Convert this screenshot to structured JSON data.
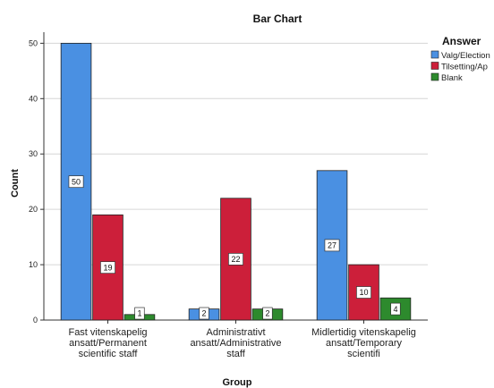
{
  "chart_data": {
    "type": "bar",
    "title": "Bar Chart",
    "xlabel": "Group",
    "ylabel": "Count",
    "ylim": [
      0,
      52
    ],
    "yticks": [
      0,
      10,
      20,
      30,
      40,
      50
    ],
    "grid": true,
    "legend_position": "right",
    "legend_title": "Answer",
    "categories": [
      [
        "Fast vitenskapelig",
        "ansatt/Permanent",
        "scientific staff"
      ],
      [
        "Administrativt",
        "ansatt/Administrative",
        "staff"
      ],
      [
        "Midlertidig vitenskapelig",
        "ansatt/Temporary",
        "scientifi"
      ]
    ],
    "series": [
      {
        "name": "Valg/Election",
        "color": "#4a90e2",
        "values": [
          50,
          2,
          27
        ]
      },
      {
        "name": "Tilsetting/Ap",
        "color": "#cc1f3a",
        "values": [
          19,
          22,
          10
        ]
      },
      {
        "name": "Blank",
        "color": "#2d8a2d",
        "values": [
          1,
          2,
          4
        ]
      }
    ]
  }
}
